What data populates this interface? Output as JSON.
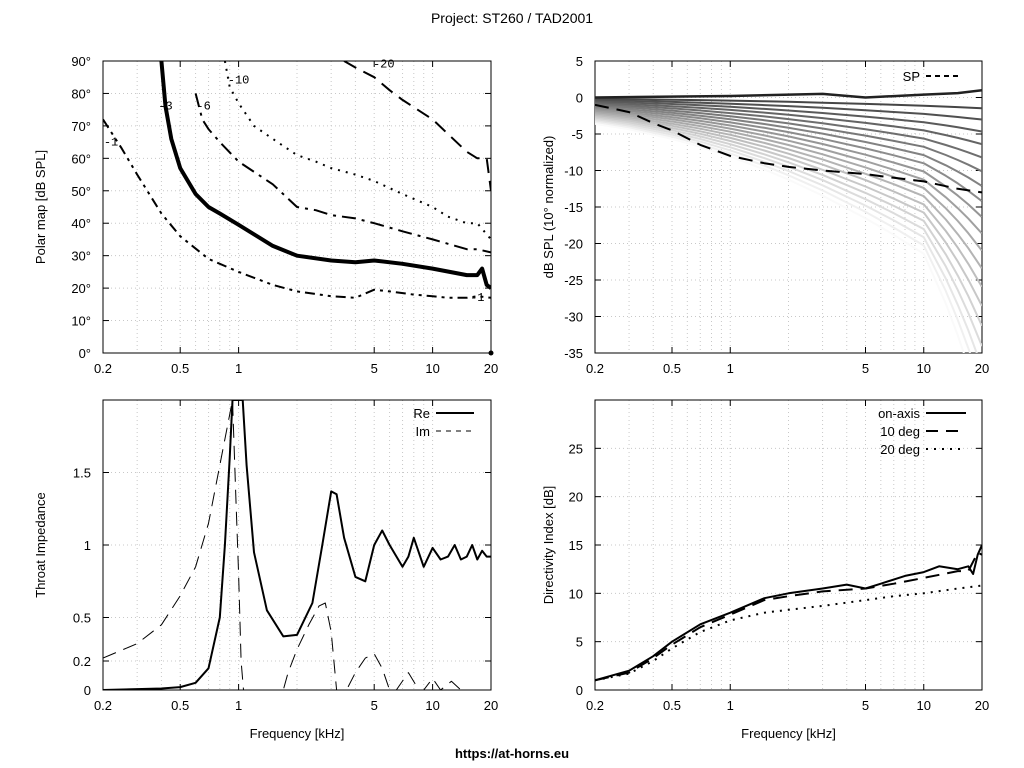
{
  "page": {
    "title": "Project: ST260 / TAD2001",
    "footer": "https://at-horns.eu"
  },
  "chart_data": [
    {
      "id": "polar",
      "type": "line",
      "title": "",
      "xlabel": "",
      "ylabel": "Polar map [dB SPL]",
      "xscale": "log",
      "xlim": [
        0.2,
        20
      ],
      "ylim": [
        0,
        90
      ],
      "xticks": [
        0.2,
        0.5,
        1,
        5,
        10,
        20
      ],
      "xtick_labels": [
        "0.2",
        "0.5",
        "1",
        "5",
        "10",
        "20"
      ],
      "yticks": [
        0,
        10,
        20,
        30,
        40,
        50,
        60,
        70,
        80,
        90
      ],
      "ytick_labels": [
        "0°",
        "10°",
        "20°",
        "30°",
        "40°",
        "50°",
        "60°",
        "70°",
        "80°",
        "90°"
      ],
      "grid": true,
      "series": [
        {
          "name": "-1",
          "style": "dash-dot-dot",
          "width": 2,
          "x": [
            0.2,
            0.25,
            0.3,
            0.4,
            0.5,
            0.7,
            1,
            1.5,
            2,
            3,
            4,
            5,
            6,
            8,
            10,
            12,
            15,
            17,
            20
          ],
          "y": [
            72,
            63,
            55,
            43,
            36,
            29,
            25,
            21,
            19,
            17.5,
            17,
            19.5,
            19,
            18,
            17.5,
            17,
            17,
            17.5,
            17
          ]
        },
        {
          "name": "-3",
          "style": "solid",
          "width": 4,
          "x": [
            0.4,
            0.42,
            0.45,
            0.5,
            0.6,
            0.7,
            0.8,
            1,
            1.5,
            2,
            3,
            4,
            5,
            7,
            10,
            15,
            17,
            18,
            19,
            20
          ],
          "y": [
            90,
            76,
            66,
            57,
            49,
            45,
            43,
            39.5,
            33,
            30,
            28.5,
            28,
            28.5,
            27.5,
            26,
            24,
            24,
            26,
            21,
            20
          ]
        },
        {
          "name": "-6",
          "style": "dash-dot",
          "width": 2,
          "x": [
            0.6,
            0.65,
            0.7,
            0.8,
            1,
            1.5,
            2,
            2.5,
            3,
            4,
            5,
            7,
            10,
            15,
            17,
            20
          ],
          "y": [
            80,
            72,
            69,
            65,
            59,
            52,
            45,
            44,
            42.5,
            41.5,
            40,
            37.5,
            35,
            32,
            32,
            31
          ]
        },
        {
          "name": "-10",
          "style": "dotted",
          "width": 2,
          "x": [
            0.85,
            0.9,
            1,
            1.2,
            1.5,
            2,
            2.5,
            3,
            4,
            5,
            7,
            10,
            12,
            15,
            17,
            20
          ],
          "y": [
            90,
            82,
            77,
            70,
            66,
            61,
            59,
            57,
            55,
            53,
            49,
            45,
            42,
            40,
            40,
            35
          ]
        },
        {
          "name": "-20",
          "style": "dashed",
          "width": 2,
          "x": [
            3.5,
            4,
            5,
            6,
            7,
            10,
            15,
            17,
            19,
            20
          ],
          "y": [
            90,
            88,
            85,
            81,
            78,
            72,
            62,
            60,
            60,
            50
          ]
        }
      ],
      "annotations": [
        "-1",
        "-3",
        "-6",
        "-10",
        "-20",
        "-1"
      ]
    },
    {
      "id": "spl",
      "type": "line",
      "title": "",
      "xlabel": "",
      "ylabel": "dB SPL (10° normalized)",
      "xscale": "log",
      "xlim": [
        0.2,
        20
      ],
      "ylim": [
        -35,
        5
      ],
      "xticks": [
        0.2,
        0.5,
        1,
        5,
        10,
        20
      ],
      "xtick_labels": [
        "0.2",
        "0.5",
        "1",
        "5",
        "10",
        "20"
      ],
      "yticks": [
        -35,
        -30,
        -25,
        -20,
        -15,
        -10,
        -5,
        0,
        5
      ],
      "ytick_labels": [
        "-35",
        "-30",
        "-25",
        "-20",
        "-15",
        "-10",
        "-5",
        "0",
        "5"
      ],
      "grid": true,
      "legend": "top-right",
      "legend_entries": [
        "SP"
      ],
      "fan_curve_count": 19,
      "series": [
        {
          "name": "SP",
          "style": "dashed",
          "width": 2,
          "x": [
            0.2,
            0.3,
            0.4,
            0.5,
            0.7,
            1,
            1.5,
            2,
            3,
            5,
            7,
            10,
            15,
            20
          ],
          "y": [
            -1,
            -2,
            -3.5,
            -4.5,
            -6.5,
            -8,
            -9,
            -9.5,
            -10,
            -10.5,
            -11,
            -11.5,
            -12.5,
            -13
          ]
        }
      ]
    },
    {
      "id": "impedance",
      "type": "line",
      "title": "",
      "xlabel": "Frequency [kHz]",
      "ylabel": "Throat Impedance",
      "xscale": "log",
      "xlim": [
        0.2,
        20
      ],
      "ylim": [
        0,
        2
      ],
      "xticks": [
        0.2,
        0.5,
        1,
        5,
        10,
        20
      ],
      "xtick_labels": [
        "0.2",
        "0.5",
        "1",
        "5",
        "10",
        "20"
      ],
      "yticks": [
        0,
        0.2,
        0.5,
        1,
        1.5
      ],
      "ytick_labels": [
        "0",
        "0.2",
        "0.5",
        "1",
        "1.5"
      ],
      "grid": true,
      "legend": "top-right",
      "legend_entries": [
        "Re",
        "Im"
      ],
      "series": [
        {
          "name": "Re",
          "style": "solid",
          "width": 2,
          "x": [
            0.2,
            0.4,
            0.5,
            0.6,
            0.7,
            0.8,
            0.85,
            0.9,
            0.93,
            0.96,
            1.0,
            1.05,
            1.1,
            1.2,
            1.4,
            1.7,
            2.0,
            2.4,
            2.7,
            3.0,
            3.2,
            3.5,
            4.0,
            4.5,
            5.0,
            5.5,
            6.0,
            7.0,
            7.5,
            8.0,
            9.0,
            10.0,
            11.0,
            12.0,
            13.0,
            14.0,
            15.0,
            16.0,
            17.0,
            18.0,
            19.0,
            20.0
          ],
          "y": [
            0.0,
            0.01,
            0.02,
            0.05,
            0.15,
            0.5,
            1.0,
            1.6,
            2.0,
            2.0,
            2.0,
            2.0,
            1.55,
            0.95,
            0.55,
            0.37,
            0.38,
            0.6,
            1.0,
            1.37,
            1.35,
            1.05,
            0.78,
            0.75,
            1.0,
            1.1,
            1.0,
            0.85,
            0.92,
            1.05,
            0.85,
            0.98,
            0.9,
            0.92,
            1.0,
            0.9,
            0.92,
            1.0,
            0.9,
            0.96,
            0.92,
            0.92
          ]
        },
        {
          "name": "Im",
          "style": "dashed",
          "width": 1,
          "x": [
            0.2,
            0.3,
            0.4,
            0.5,
            0.6,
            0.7,
            0.8,
            0.9,
            0.93,
            0.97,
            1.0,
            1.03,
            1.06,
            1.1,
            1.3,
            1.7,
            1.8,
            2.0,
            2.3,
            2.6,
            2.8,
            3.0,
            3.2,
            3.6,
            4.0,
            4.5,
            5.0,
            5.5,
            6.0,
            6.5,
            7.5,
            8.5,
            9.0,
            10.0,
            11.0,
            12.5,
            14.0,
            15.0,
            17.0,
            20.0
          ],
          "y": [
            0.22,
            0.32,
            0.45,
            0.65,
            0.85,
            1.15,
            1.55,
            1.9,
            2.0,
            1.3,
            0.8,
            0.2,
            0.0,
            0.0,
            0.0,
            0.0,
            0.12,
            0.28,
            0.45,
            0.58,
            0.6,
            0.4,
            0.0,
            0.0,
            0.12,
            0.22,
            0.25,
            0.15,
            0.0,
            0.0,
            0.12,
            0.0,
            0.0,
            0.08,
            0.0,
            0.06,
            0.0,
            0.0,
            0.0,
            0.0
          ]
        }
      ]
    },
    {
      "id": "directivity",
      "type": "line",
      "title": "",
      "xlabel": "Frequency [kHz]",
      "ylabel": "Directivity Index [dB]",
      "xscale": "log",
      "xlim": [
        0.2,
        20
      ],
      "ylim": [
        0,
        30
      ],
      "xticks": [
        0.2,
        0.5,
        1,
        5,
        10,
        20
      ],
      "xtick_labels": [
        "0.2",
        "0.5",
        "1",
        "5",
        "10",
        "20"
      ],
      "yticks": [
        0,
        5,
        10,
        15,
        20,
        25
      ],
      "ytick_labels": [
        "0",
        "5",
        "10",
        "15",
        "20",
        "25"
      ],
      "grid": true,
      "legend": "top-right",
      "legend_entries": [
        "on-axis",
        "10 deg",
        "20 deg"
      ],
      "series": [
        {
          "name": "on-axis",
          "style": "solid",
          "width": 2,
          "x": [
            0.2,
            0.3,
            0.4,
            0.5,
            0.7,
            1.0,
            1.5,
            2.0,
            3.0,
            4.0,
            5.0,
            6.0,
            8.0,
            10.0,
            12.0,
            15.0,
            17.0,
            18.0,
            19.0,
            20.0
          ],
          "y": [
            1.0,
            2.0,
            3.5,
            5.0,
            6.8,
            8.0,
            9.5,
            10.0,
            10.5,
            10.9,
            10.5,
            11.0,
            11.8,
            12.2,
            12.8,
            12.5,
            12.8,
            12.0,
            14.0,
            15.0
          ]
        },
        {
          "name": "10 deg",
          "style": "dashed",
          "width": 2,
          "x": [
            0.2,
            0.3,
            0.4,
            0.5,
            0.7,
            1.0,
            1.5,
            2.0,
            3.0,
            5.0,
            7.0,
            10.0,
            15.0,
            17.0,
            19.0,
            20.0
          ],
          "y": [
            1.0,
            1.8,
            3.3,
            4.7,
            6.5,
            7.8,
            9.3,
            9.7,
            10.2,
            10.5,
            11.0,
            11.6,
            12.3,
            12.3,
            14.2,
            14.0
          ]
        },
        {
          "name": "20 deg",
          "style": "dotted",
          "width": 2,
          "x": [
            0.2,
            0.3,
            0.4,
            0.5,
            0.7,
            1.0,
            1.5,
            2.0,
            3.0,
            5.0,
            7.0,
            10.0,
            15.0,
            20.0
          ],
          "y": [
            1.0,
            1.7,
            3.0,
            4.3,
            6.0,
            7.2,
            8.0,
            8.3,
            8.7,
            9.3,
            9.7,
            10.0,
            10.5,
            10.8
          ]
        }
      ]
    }
  ]
}
